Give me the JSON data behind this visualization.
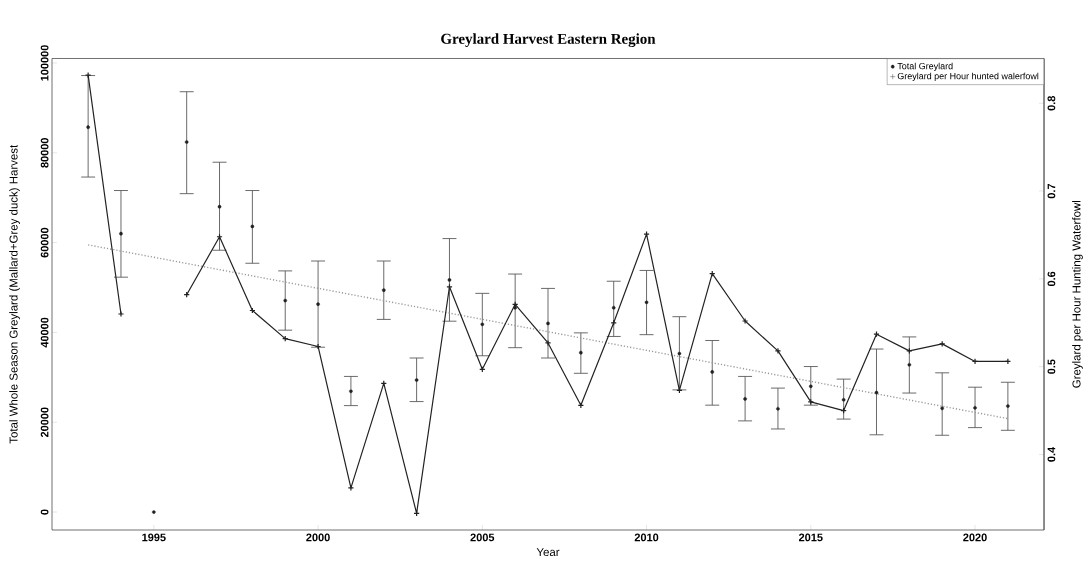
{
  "chart_data": {
    "type": "scatter",
    "title": "Greylard Harvest Eastern Region",
    "xlabel": "Year",
    "ylabel": "Total Whole Season Greylard (Mallard+Grey duck) Harvest",
    "y2label": "Greylard per Hour Hunting Waterfowl",
    "x": [
      1993,
      1994,
      1995,
      1996,
      1997,
      1998,
      1999,
      2000,
      2001,
      2002,
      2003,
      2004,
      2005,
      2006,
      2007,
      2008,
      2009,
      2010,
      2011,
      2012,
      2013,
      2014,
      2015,
      2016,
      2017,
      2018,
      2019,
      2020,
      2021
    ],
    "xlim": [
      1991.9,
      2022.1
    ],
    "xticks": [
      1995,
      2000,
      2005,
      2010,
      2015,
      2020
    ],
    "ylim": [
      -4000,
      101000
    ],
    "yticks": [
      0,
      20000,
      40000,
      60000,
      80000,
      100000
    ],
    "y2lim": [
      0.314,
      0.851
    ],
    "y2ticks": [
      0.4,
      0.5,
      0.6,
      0.7,
      0.8
    ],
    "legend": "top right",
    "series": [
      {
        "name": "Total Greylard",
        "marker": "circle",
        "color": "#222222",
        "values": [
          85700,
          62000,
          0,
          82400,
          68000,
          63600,
          47100,
          46300,
          26900,
          49400,
          29400,
          51700,
          41800,
          45500,
          42000,
          35500,
          45500,
          46700,
          35300,
          31200,
          25200,
          23000,
          28000,
          25000,
          26600,
          32800,
          23100,
          23200,
          23600
        ],
        "errors": [
          [
            74600,
            97200
          ],
          [
            52300,
            71600
          ],
          null,
          [
            70900,
            93600
          ],
          [
            58300,
            77900
          ],
          [
            55400,
            71600
          ],
          [
            40500,
            53700
          ],
          [
            36700,
            55900
          ],
          [
            23700,
            30200
          ],
          [
            42900,
            55900
          ],
          [
            24600,
            34300
          ],
          [
            42500,
            60900
          ],
          [
            34800,
            48700
          ],
          [
            36600,
            53000
          ],
          [
            34300,
            49800
          ],
          [
            30900,
            39900
          ],
          [
            39100,
            51400
          ],
          [
            39500,
            53800
          ],
          [
            27200,
            43500
          ],
          [
            23800,
            38200
          ],
          [
            20300,
            30200
          ],
          [
            18500,
            27600
          ],
          [
            23800,
            32400
          ],
          [
            20700,
            29600
          ],
          [
            17200,
            36300
          ],
          [
            26500,
            39000
          ],
          [
            17100,
            31000
          ],
          [
            18800,
            27800
          ],
          [
            18200,
            28900
          ]
        ]
      },
      {
        "name": "Greylard per Hour hunted walerfowl",
        "type": "line",
        "axis": "y2",
        "marker": "cross",
        "color": "#222222",
        "values": [
          0.832,
          0.56,
          null,
          0.582,
          0.648,
          0.564,
          0.532,
          0.523,
          0.362,
          0.481,
          0.333,
          0.591,
          0.497,
          0.571,
          0.527,
          0.456,
          0.55,
          0.651,
          0.473,
          0.606,
          0.552,
          0.518,
          0.46,
          0.45,
          0.537,
          0.518,
          0.526,
          0.506,
          0.506
        ]
      },
      {
        "type": "line",
        "x": [
          1993,
          2021
        ],
        "marker": "none",
        "line_style": "dotted",
        "color": "#999999",
        "values": [
          59500,
          20800
        ]
      }
    ]
  }
}
